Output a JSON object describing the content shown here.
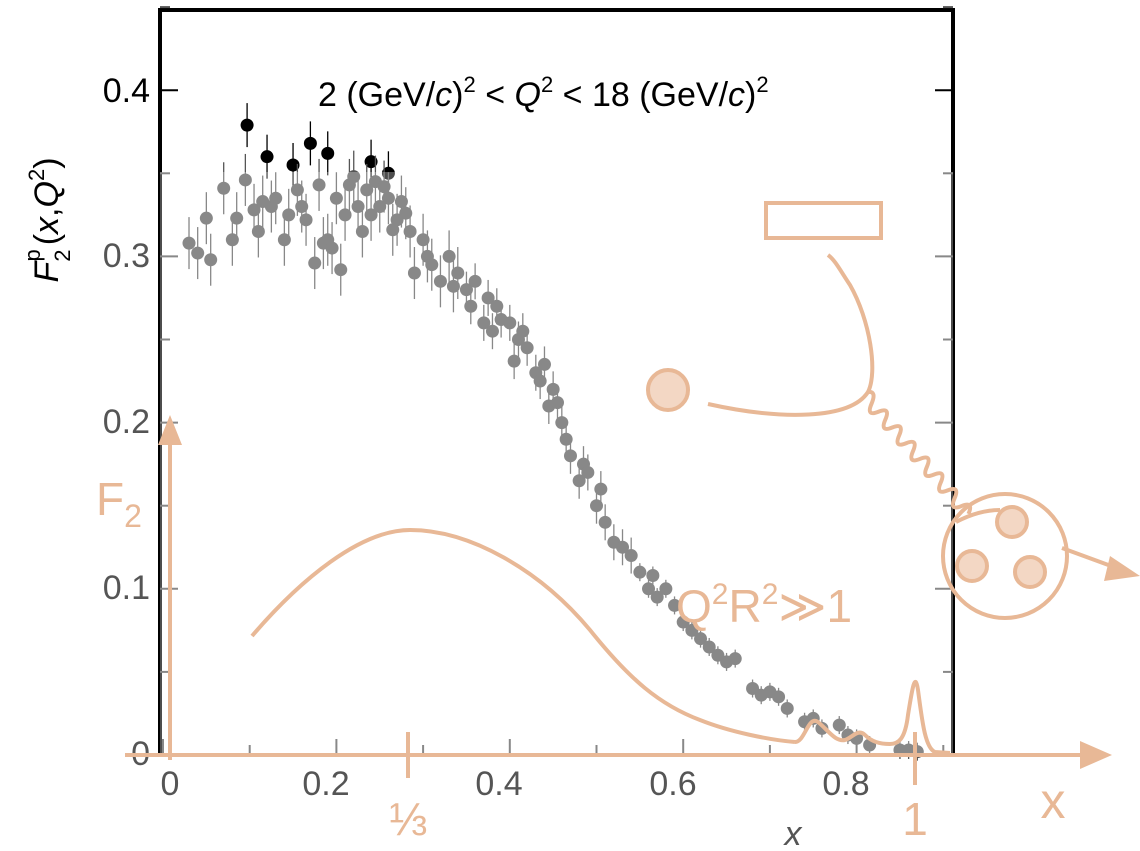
{
  "chart_data": {
    "type": "scatter",
    "title": "2 (GeV/c)² < Q² < 18 (GeV/c)²",
    "title_parts": {
      "pre": "2 (GeV/",
      "c": "c",
      "sq1": "2",
      "lt1": " < ",
      "Q": "Q",
      "sq2": "2",
      "mid": " < 18 (GeV/",
      "sq3": "2"
    },
    "xlabel": "x",
    "ylabel": "F₂ᵖ(x,Q²)",
    "ylabel_parts": {
      "F": "F",
      "sub": "2",
      "sup": "p",
      "open": "(",
      "x": "x",
      "comma": ",",
      "Q": "Q",
      "sq": "2",
      "close": ")"
    },
    "xlim": [
      0,
      0.9
    ],
    "ylim": [
      0,
      0.45
    ],
    "x_ticks": [
      "0",
      "0.2",
      "0.4",
      "0.6",
      "0.8"
    ],
    "y_ticks": [
      "0",
      "0.1",
      "0.2",
      "0.3",
      "0.4"
    ],
    "grid": false,
    "series": [
      {
        "color": "#000000",
        "points": [
          [
            0.097,
            0.379
          ],
          [
            0.12,
            0.36
          ],
          [
            0.15,
            0.355
          ],
          [
            0.17,
            0.368
          ],
          [
            0.19,
            0.362
          ],
          [
            0.24,
            0.357
          ],
          [
            0.26,
            0.35
          ]
        ]
      },
      {
        "color": "#555555",
        "points": [
          [
            0.03,
            0.308
          ],
          [
            0.04,
            0.302
          ],
          [
            0.05,
            0.323
          ],
          [
            0.055,
            0.298
          ],
          [
            0.07,
            0.341
          ],
          [
            0.08,
            0.31
          ],
          [
            0.085,
            0.323
          ],
          [
            0.095,
            0.346
          ],
          [
            0.105,
            0.328
          ],
          [
            0.11,
            0.315
          ],
          [
            0.115,
            0.333
          ],
          [
            0.125,
            0.33
          ],
          [
            0.13,
            0.335
          ],
          [
            0.14,
            0.31
          ],
          [
            0.145,
            0.325
          ],
          [
            0.155,
            0.34
          ],
          [
            0.16,
            0.33
          ],
          [
            0.165,
            0.322
          ],
          [
            0.175,
            0.296
          ],
          [
            0.18,
            0.343
          ],
          [
            0.185,
            0.308
          ],
          [
            0.19,
            0.31
          ],
          [
            0.195,
            0.305
          ],
          [
            0.2,
            0.335
          ],
          [
            0.205,
            0.292
          ],
          [
            0.21,
            0.325
          ],
          [
            0.215,
            0.343
          ],
          [
            0.22,
            0.348
          ],
          [
            0.225,
            0.33
          ],
          [
            0.23,
            0.315
          ],
          [
            0.235,
            0.34
          ],
          [
            0.24,
            0.325
          ],
          [
            0.245,
            0.345
          ],
          [
            0.25,
            0.33
          ],
          [
            0.255,
            0.342
          ],
          [
            0.26,
            0.335
          ],
          [
            0.265,
            0.316
          ],
          [
            0.27,
            0.322
          ],
          [
            0.275,
            0.333
          ],
          [
            0.28,
            0.326
          ],
          [
            0.285,
            0.315
          ],
          [
            0.29,
            0.29
          ],
          [
            0.3,
            0.31
          ],
          [
            0.305,
            0.3
          ],
          [
            0.31,
            0.295
          ],
          [
            0.32,
            0.285
          ],
          [
            0.33,
            0.3
          ],
          [
            0.335,
            0.282
          ],
          [
            0.34,
            0.29
          ],
          [
            0.35,
            0.28
          ],
          [
            0.355,
            0.27
          ],
          [
            0.36,
            0.285
          ],
          [
            0.37,
            0.26
          ],
          [
            0.375,
            0.275
          ],
          [
            0.38,
            0.255
          ],
          [
            0.385,
            0.27
          ],
          [
            0.39,
            0.262
          ],
          [
            0.4,
            0.26
          ],
          [
            0.405,
            0.237
          ],
          [
            0.41,
            0.25
          ],
          [
            0.415,
            0.255
          ],
          [
            0.42,
            0.245
          ],
          [
            0.43,
            0.23
          ],
          [
            0.435,
            0.225
          ],
          [
            0.44,
            0.235
          ],
          [
            0.445,
            0.21
          ],
          [
            0.45,
            0.22
          ],
          [
            0.455,
            0.212
          ],
          [
            0.46,
            0.2
          ],
          [
            0.465,
            0.19
          ],
          [
            0.47,
            0.18
          ],
          [
            0.48,
            0.165
          ],
          [
            0.485,
            0.175
          ],
          [
            0.49,
            0.17
          ],
          [
            0.5,
            0.15
          ],
          [
            0.505,
            0.16
          ],
          [
            0.51,
            0.14
          ],
          [
            0.52,
            0.128
          ],
          [
            0.53,
            0.125
          ],
          [
            0.54,
            0.12
          ],
          [
            0.55,
            0.11
          ],
          [
            0.56,
            0.1
          ],
          [
            0.565,
            0.108
          ],
          [
            0.57,
            0.095
          ],
          [
            0.58,
            0.1
          ],
          [
            0.59,
            0.09
          ],
          [
            0.6,
            0.08
          ],
          [
            0.61,
            0.075
          ],
          [
            0.62,
            0.07
          ],
          [
            0.63,
            0.065
          ],
          [
            0.64,
            0.06
          ],
          [
            0.65,
            0.056
          ],
          [
            0.66,
            0.058
          ],
          [
            0.68,
            0.04
          ],
          [
            0.69,
            0.036
          ],
          [
            0.7,
            0.038
          ],
          [
            0.71,
            0.035
          ],
          [
            0.72,
            0.028
          ],
          [
            0.74,
            0.02
          ],
          [
            0.75,
            0.022
          ],
          [
            0.76,
            0.016
          ],
          [
            0.78,
            0.018
          ],
          [
            0.79,
            0.012
          ],
          [
            0.8,
            0.01
          ],
          [
            0.815,
            0.006
          ],
          [
            0.85,
            0.003
          ],
          [
            0.86,
            0.003
          ],
          [
            0.87,
            0.002
          ]
        ]
      }
    ]
  },
  "overlay": {
    "color": "#e8b896",
    "f2_label": "F",
    "f2_sub": "2",
    "x_label": "x",
    "one_third_label": "⅓",
    "one_label": "1",
    "condition": "Q²R²≫1",
    "condition_parts": {
      "Q": "Q",
      "sq1": "2",
      "R": "R",
      "sq2": "2",
      "rest": "≫1"
    }
  }
}
